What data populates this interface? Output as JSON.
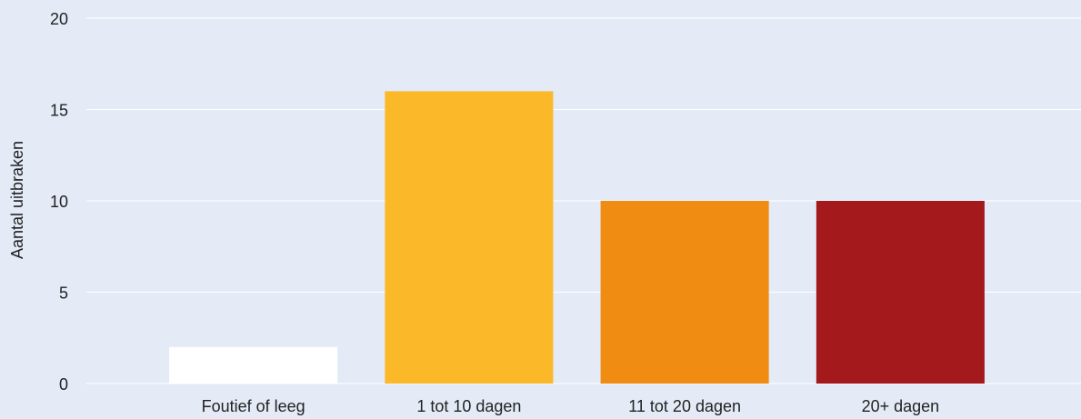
{
  "chart_data": {
    "type": "bar",
    "ylabel": "Aantal uitbraken",
    "categories": [
      "Foutief of leeg",
      "1 tot 10 dagen",
      "11 tot 20 dagen",
      "20+ dagen"
    ],
    "values": [
      2,
      16,
      10,
      10
    ],
    "colors": [
      "#ffffff",
      "#fbb829",
      "#f18c12",
      "#a3191c"
    ],
    "ylim": [
      0,
      20
    ],
    "yticks": [
      0,
      5,
      10,
      15,
      20
    ],
    "grid": true
  }
}
